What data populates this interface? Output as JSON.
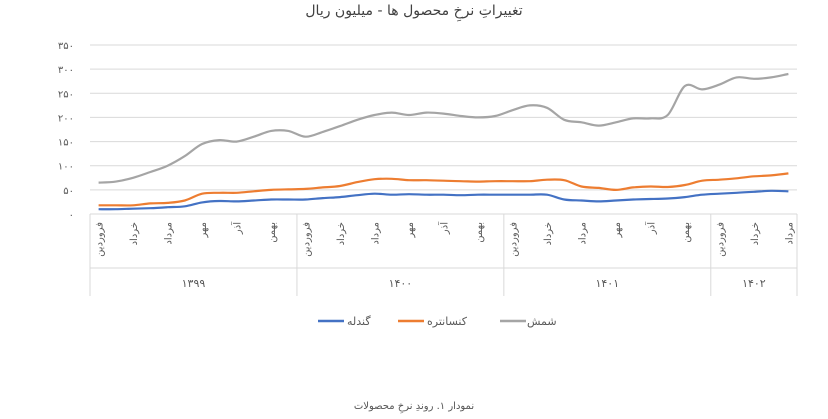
{
  "chart_data": {
    "type": "line",
    "title": "تغییراتِ نرخِ محصول ها - میلیون ریال",
    "ylim": [
      0,
      350
    ],
    "yticks": [
      "۰",
      "۵۰",
      "۱۰۰",
      "۱۵۰",
      "۲۰۰",
      "۲۵۰",
      "۳۰۰",
      "۳۵۰"
    ],
    "month_labels": [
      "فروردین",
      "خرداد",
      "مرداد",
      "مهر",
      "آذر",
      "بهمن",
      "فروردین",
      "خرداد",
      "مرداد",
      "مهر",
      "آذر",
      "بهمن",
      "فروردین",
      "خرداد",
      "مرداد",
      "مهر",
      "آذر",
      "بهمن",
      "فروردین",
      "خرداد",
      "مرداد"
    ],
    "year_groups": [
      {
        "label": "۱۳۹۹",
        "months": 12
      },
      {
        "label": "۱۴۰۰",
        "months": 12
      },
      {
        "label": "۱۴۰۱",
        "months": 12
      },
      {
        "label": "۱۴۰۲",
        "months": 5
      }
    ],
    "grid": true,
    "legend_position": "bottom",
    "series": [
      {
        "name": "گندله",
        "color": "#4472C4",
        "values": [
          10,
          10,
          11,
          12,
          14,
          16,
          24,
          27,
          26,
          28,
          30,
          30,
          30,
          33,
          35,
          39,
          42,
          40,
          41,
          40,
          40,
          39,
          40,
          40,
          40,
          40,
          40,
          30,
          28,
          26,
          28,
          30,
          31,
          32,
          35,
          40,
          42,
          44,
          46,
          48,
          47
        ]
      },
      {
        "name": "کنسانتره",
        "color": "#ED7D31",
        "values": [
          18,
          18,
          18,
          22,
          23,
          28,
          42,
          44,
          44,
          47,
          50,
          51,
          52,
          55,
          58,
          66,
          72,
          73,
          70,
          70,
          69,
          68,
          67,
          68,
          68,
          68,
          71,
          70,
          57,
          54,
          50,
          55,
          57,
          56,
          60,
          69,
          71,
          74,
          78,
          80,
          84
        ]
      },
      {
        "name": "شمش",
        "color": "#A5A5A5",
        "values": [
          65,
          67,
          75,
          87,
          100,
          120,
          145,
          153,
          150,
          160,
          172,
          172,
          160,
          170,
          182,
          195,
          205,
          210,
          205,
          210,
          208,
          203,
          200,
          203,
          215,
          225,
          220,
          195,
          190,
          183,
          190,
          198,
          198,
          205,
          265,
          258,
          268,
          283,
          280,
          283,
          290
        ]
      }
    ]
  },
  "caption": "نمودار ۱. روندِ نرخِ محصولات"
}
